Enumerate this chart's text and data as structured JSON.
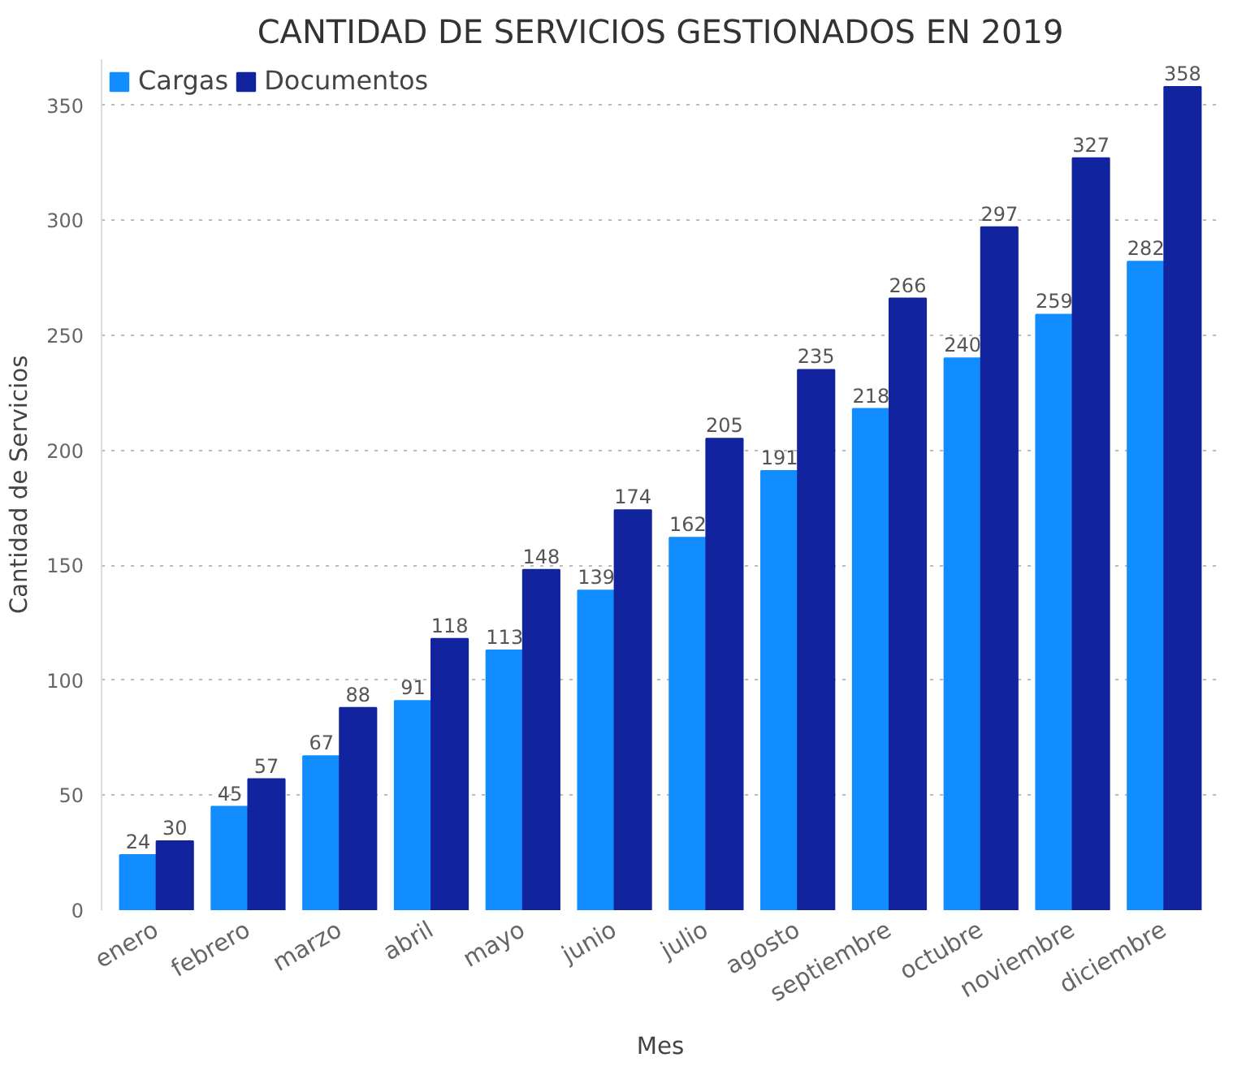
{
  "chart_data": {
    "type": "bar",
    "title": "CANTIDAD DE SERVICIOS GESTIONADOS EN 2019",
    "xlabel": "Mes",
    "ylabel": "Cantidad de Servicios",
    "categories": [
      "enero",
      "febrero",
      "marzo",
      "abril",
      "mayo",
      "junio",
      "julio",
      "agosto",
      "septiembre",
      "octubre",
      "noviembre",
      "diciembre"
    ],
    "series": [
      {
        "name": "Cargas",
        "color": "#118dff",
        "values": [
          24,
          45,
          67,
          91,
          113,
          139,
          162,
          191,
          218,
          240,
          259,
          282
        ]
      },
      {
        "name": "Documentos",
        "color": "#12239e",
        "values": [
          30,
          57,
          88,
          118,
          148,
          174,
          205,
          235,
          266,
          297,
          327,
          358
        ]
      }
    ],
    "ylim": [
      0,
      370
    ],
    "yticks": [
      0,
      50,
      100,
      150,
      200,
      250,
      300,
      350
    ],
    "grid": "y",
    "legend": "top left",
    "data_labels": true
  }
}
